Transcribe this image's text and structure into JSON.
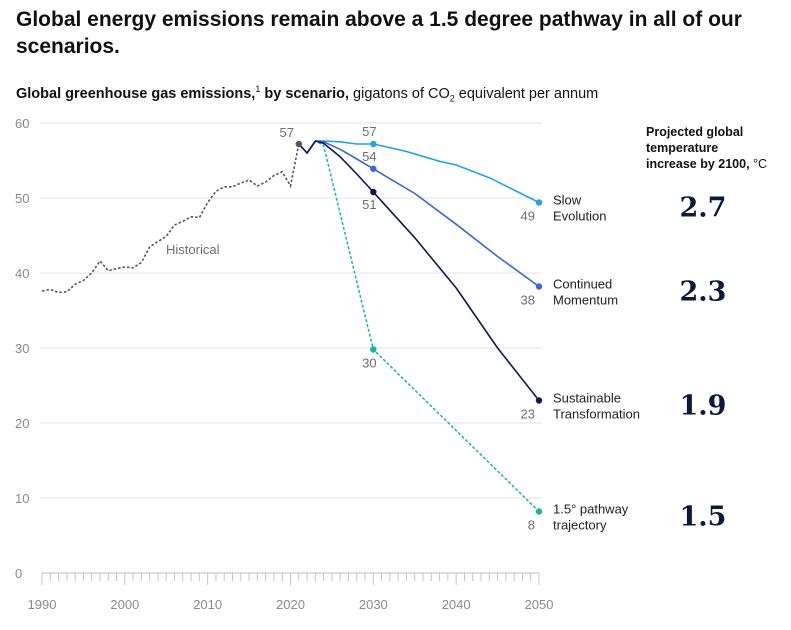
{
  "headline": "Global energy emissions remain above a 1.5 degree pathway in all of our scenarios.",
  "subtitle": {
    "bold": "Global greenhouse gas emissions,",
    "footnote": "1",
    "bold2": " by scenario,",
    "rest1": " gigatons of CO",
    "sub": "2",
    "rest2": " equivalent per annum"
  },
  "temp_header": {
    "line1": "Projected global",
    "line2": "temperature",
    "line3": "increase by 2100,",
    "unit": " °C"
  },
  "chart_data": {
    "type": "line",
    "xlim": [
      1990,
      2050
    ],
    "ylim": [
      0,
      60
    ],
    "x_ticks": [
      1990,
      2000,
      2010,
      2020,
      2030,
      2040,
      2050
    ],
    "y_ticks": [
      0,
      10,
      20,
      30,
      40,
      50,
      60
    ],
    "grid": true,
    "historical": {
      "label": "Historical",
      "color": "#555555",
      "points": [
        [
          1990,
          37.6
        ],
        [
          1991,
          37.8
        ],
        [
          1992,
          37.4
        ],
        [
          1993,
          37.5
        ],
        [
          1994,
          38.5
        ],
        [
          1995,
          39.0
        ],
        [
          1996,
          40.0
        ],
        [
          1997,
          41.6
        ],
        [
          1998,
          40.3
        ],
        [
          1999,
          40.6
        ],
        [
          2000,
          40.8
        ],
        [
          2001,
          40.7
        ],
        [
          2002,
          41.4
        ],
        [
          2003,
          43.5
        ],
        [
          2004,
          44.2
        ],
        [
          2005,
          44.9
        ],
        [
          2006,
          46.4
        ],
        [
          2007,
          46.9
        ],
        [
          2008,
          47.5
        ],
        [
          2009,
          47.4
        ],
        [
          2010,
          49.4
        ],
        [
          2011,
          50.9
        ],
        [
          2012,
          51.5
        ],
        [
          2013,
          51.5
        ],
        [
          2014,
          52.0
        ],
        [
          2015,
          52.4
        ],
        [
          2016,
          51.6
        ],
        [
          2017,
          52.1
        ],
        [
          2018,
          53.0
        ],
        [
          2019,
          53.5
        ],
        [
          2020,
          51.6
        ],
        [
          2021,
          57.2
        ]
      ]
    },
    "series": [
      {
        "name": "Slow Evolution",
        "label_lines": [
          "Slow",
          "Evolution"
        ],
        "color": "#21a3de",
        "dashed": false,
        "end_label": "49",
        "temp": "2.7",
        "points": [
          [
            2021,
            57.2
          ],
          [
            2022,
            56.0
          ],
          [
            2023,
            57.6
          ],
          [
            2024,
            57.6
          ],
          [
            2026,
            57.5
          ],
          [
            2028,
            57.2
          ],
          [
            2030,
            57.2
          ],
          [
            2034,
            56.2
          ],
          [
            2038,
            54.9
          ],
          [
            2040,
            54.4
          ],
          [
            2044,
            52.7
          ],
          [
            2050,
            49.4
          ]
        ]
      },
      {
        "name": "Continued Momentum",
        "label_lines": [
          "Continued",
          "Momentum"
        ],
        "color": "#3a66d6",
        "dashed": false,
        "end_label": "38",
        "temp": "2.3",
        "points": [
          [
            2021,
            57.2
          ],
          [
            2022,
            56.0
          ],
          [
            2023,
            57.6
          ],
          [
            2024,
            57.5
          ],
          [
            2026,
            56.5
          ],
          [
            2028,
            55.2
          ],
          [
            2030,
            53.9
          ],
          [
            2035,
            50.6
          ],
          [
            2040,
            46.5
          ],
          [
            2045,
            42.2
          ],
          [
            2050,
            38.2
          ]
        ]
      },
      {
        "name": "Sustainable Transformation",
        "label_lines": [
          "Sustainable",
          "Transformation"
        ],
        "color": "#0b1a5c",
        "dashed": false,
        "end_label": "23",
        "temp": "1.9",
        "points": [
          [
            2021,
            57.2
          ],
          [
            2022,
            56.0
          ],
          [
            2023,
            57.6
          ],
          [
            2024,
            57.3
          ],
          [
            2026,
            55.5
          ],
          [
            2028,
            53.2
          ],
          [
            2030,
            50.8
          ],
          [
            2035,
            44.7
          ],
          [
            2040,
            38.0
          ],
          [
            2045,
            30.0
          ],
          [
            2050,
            23.0
          ]
        ]
      },
      {
        "name": "1.5° pathway trajectory",
        "label_lines": [
          "1.5° pathway",
          "trajectory"
        ],
        "color": "#17b3a5",
        "dashed": true,
        "end_label": "8",
        "temp": "1.5",
        "points": [
          [
            2021,
            57.2
          ],
          [
            2022,
            56.0
          ],
          [
            2023,
            57.6
          ],
          [
            2024,
            57.0
          ],
          [
            2030,
            29.8
          ],
          [
            2050,
            8.2
          ]
        ]
      }
    ],
    "markers": [
      {
        "x": 2021,
        "y": 57.2,
        "label": "57",
        "color": "#555555"
      },
      {
        "x": 2030,
        "y": 57.2,
        "label": "57",
        "color": "#21a3de"
      },
      {
        "x": 2030,
        "y": 53.9,
        "label": "54",
        "color": "#3a66d6"
      },
      {
        "x": 2030,
        "y": 50.8,
        "label": "51",
        "color": "#0b1a5c"
      },
      {
        "x": 2030,
        "y": 29.8,
        "label": "30",
        "color": "#17b3a5"
      }
    ]
  }
}
